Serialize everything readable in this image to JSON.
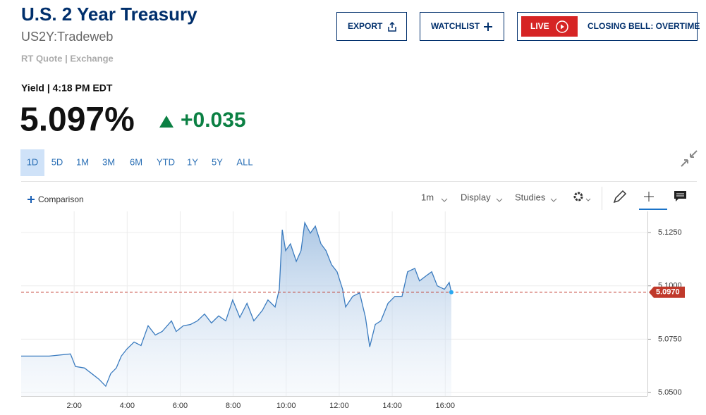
{
  "header": {
    "title": "U.S. 2 Year Treasury",
    "symbol": "US2Y:Tradeweb",
    "source": "RT Quote | Exchange"
  },
  "buttons": {
    "export": "EXPORT",
    "watchlist": "WATCHLIST",
    "live": "LIVE",
    "live_show": "CLOSING BELL: OVERTIME"
  },
  "quote": {
    "label": "Yield | 4:18 PM EDT",
    "price": "5.097%",
    "change": "+0.035"
  },
  "ranges": [
    "1D",
    "5D",
    "1M",
    "3M",
    "6M",
    "YTD",
    "1Y",
    "5Y",
    "ALL"
  ],
  "toolbar": {
    "comparison": "Comparison",
    "interval": "1m",
    "display": "Display",
    "studies": "Studies"
  },
  "chart_data": {
    "type": "area",
    "color": "#3a7bbf",
    "x": [
      0,
      0.53,
      1.06,
      1.86,
      2.05,
      2.39,
      2.66,
      2.93,
      3.19,
      3.38,
      3.59,
      3.78,
      3.99,
      4.26,
      4.52,
      4.79,
      5.06,
      5.32,
      5.67,
      5.85,
      6.12,
      6.39,
      6.65,
      6.92,
      7.18,
      7.45,
      7.72,
      7.98,
      8.25,
      8.52,
      8.78,
      9.1,
      9.31,
      9.58,
      9.74,
      9.85,
      9.98,
      10.16,
      10.38,
      10.56,
      10.7,
      10.91,
      11.1,
      11.31,
      11.5,
      11.71,
      11.92,
      12.13,
      12.24,
      12.51,
      12.77,
      12.99,
      13.15,
      13.36,
      13.57,
      13.84,
      14.1,
      14.37,
      14.58,
      14.85,
      15.03,
      15.3,
      15.49,
      15.7,
      15.97,
      16.15,
      16.23
    ],
    "values": [
      5.0671,
      5.0671,
      5.0671,
      5.0681,
      5.0622,
      5.0615,
      5.0589,
      5.0563,
      5.053,
      5.0589,
      5.0615,
      5.0671,
      5.0704,
      5.0737,
      5.072,
      5.0813,
      5.077,
      5.0786,
      5.0836,
      5.0786,
      5.0813,
      5.0819,
      5.0836,
      5.0868,
      5.0826,
      5.0859,
      5.0836,
      5.0934,
      5.0852,
      5.0918,
      5.0836,
      5.0885,
      5.0934,
      5.0901,
      5.0984,
      5.1263,
      5.1165,
      5.1197,
      5.1115,
      5.1165,
      5.1296,
      5.1247,
      5.128,
      5.1197,
      5.1165,
      5.1099,
      5.1066,
      5.0984,
      5.0901,
      5.0951,
      5.0967,
      5.0852,
      5.0714,
      5.0819,
      5.0836,
      5.0918,
      5.0951,
      5.0951,
      5.1066,
      5.1082,
      5.1023,
      5.1049,
      5.1066,
      5.1,
      5.0984,
      5.1016,
      5.097
    ],
    "xlim": [
      0,
      23.63
    ],
    "ylim": [
      5.0484,
      5.1349
    ],
    "xticks": [
      {
        "value": 2,
        "label": "2:00"
      },
      {
        "value": 4,
        "label": "4:00"
      },
      {
        "value": 6,
        "label": "6:00"
      },
      {
        "value": 8,
        "label": "8:00"
      },
      {
        "value": 10,
        "label": "10:00"
      },
      {
        "value": 12,
        "label": "12:00"
      },
      {
        "value": 14,
        "label": "14:00"
      },
      {
        "value": 16,
        "label": "16:00"
      }
    ],
    "yticks": [
      {
        "value": 5.05,
        "label": "5.0500"
      },
      {
        "value": 5.075,
        "label": "5.0750"
      },
      {
        "value": 5.1,
        "label": "5.1000"
      },
      {
        "value": 5.125,
        "label": "5.1250"
      }
    ],
    "grid": true,
    "reference_line": {
      "value": 5.097,
      "label": "5.0970",
      "color": "#c0392b"
    }
  }
}
